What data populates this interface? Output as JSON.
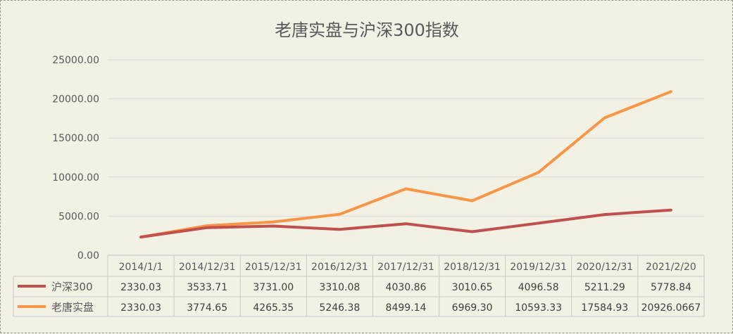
{
  "chart_data": {
    "type": "line",
    "title": "老唐实盘与沪深300指数",
    "categories": [
      "2014/1/1",
      "2014/12/31",
      "2015/12/31",
      "2016/12/31",
      "2017/12/31",
      "2018/12/31",
      "2019/12/31",
      "2020/12/31",
      "2021/2/20"
    ],
    "series": [
      {
        "name": "沪深300",
        "color": "#c0504d",
        "values": [
          2330.03,
          3533.71,
          3731.0,
          3310.08,
          4030.86,
          3010.65,
          4096.58,
          5211.29,
          5778.84
        ],
        "labels": [
          "2330.03",
          "3533.71",
          "3731.00",
          "3310.08",
          "4030.86",
          "3010.65",
          "4096.58",
          "5211.29",
          "5778.84"
        ]
      },
      {
        "name": "老唐实盘",
        "color": "#f79646",
        "values": [
          2330.03,
          3774.65,
          4265.35,
          5246.38,
          8499.14,
          6969.3,
          10593.33,
          17584.93,
          20926.0667
        ],
        "labels": [
          "2330.03",
          "3774.65",
          "4265.35",
          "5246.38",
          "8499.14",
          "6969.30",
          "10593.33",
          "17584.93",
          "20926.0667"
        ]
      }
    ],
    "yticks": [
      "0.00",
      "5000.00",
      "10000.00",
      "15000.00",
      "20000.00",
      "25000.00"
    ],
    "ylim": [
      0,
      25000
    ],
    "grid": true,
    "legend": "data-table"
  }
}
